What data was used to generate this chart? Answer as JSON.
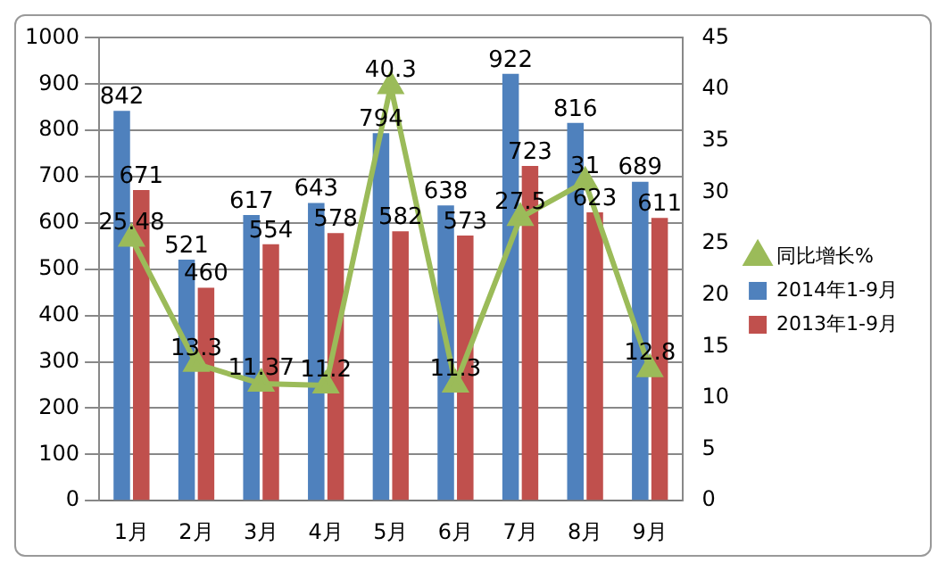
{
  "chart_data": {
    "type": "bar",
    "categories": [
      "1月",
      "2月",
      "3月",
      "4月",
      "5月",
      "6月",
      "7月",
      "8月",
      "9月"
    ],
    "series": [
      {
        "name": "2014年1-9月",
        "color": "#4f81bd",
        "values": [
          842,
          521,
          617,
          643,
          794,
          638,
          922,
          816,
          689
        ]
      },
      {
        "name": "2013年1-9月",
        "color": "#c0504d",
        "values": [
          671,
          460,
          554,
          578,
          582,
          573,
          723,
          623,
          611
        ]
      },
      {
        "name": "同比增长%",
        "type": "line",
        "axis": "y2",
        "color": "#9bbb59",
        "values": [
          25.48,
          13.3,
          11.37,
          11.2,
          40.3,
          11.3,
          27.5,
          31,
          12.8
        ]
      }
    ],
    "ylim": [
      0,
      1000
    ],
    "yticks": [
      0,
      100,
      200,
      300,
      400,
      500,
      600,
      700,
      800,
      900,
      1000
    ],
    "y2lim": [
      0,
      45
    ],
    "y2ticks": [
      0,
      5,
      10,
      15,
      20,
      25,
      30,
      35,
      40,
      45
    ],
    "grid": "y",
    "legend": "right",
    "marker": "triangle",
    "line_style": "solid",
    "data_labels": true
  }
}
